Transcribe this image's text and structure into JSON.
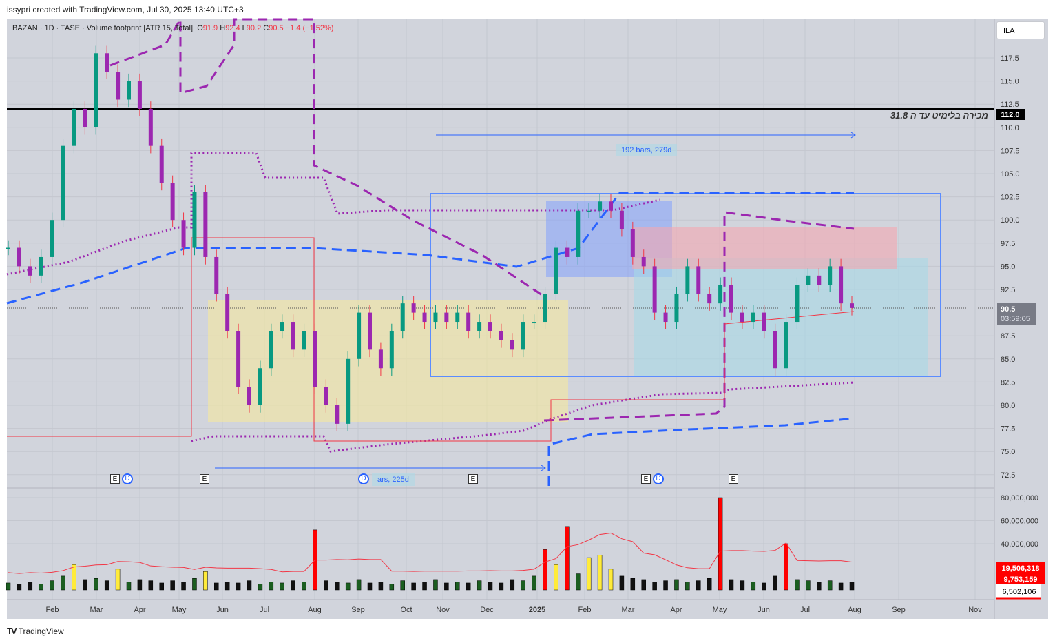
{
  "credit": "issypri created with TradingView.com, Jul 30, 2025 13:40 UTC+3",
  "legend": {
    "symbol": "BAZAN · 1D · TASE · Volume footprint [ATR 15, Total]",
    "o_label": "O",
    "o": "91.9",
    "h_label": "H",
    "h": "92.4",
    "l_label": "L",
    "l": "90.2",
    "c_label": "C",
    "c": "90.5",
    "change": "−1.4 (−1.52%)"
  },
  "currency": "ILA",
  "annotation_text": "מכירה בלימיט עד ה 31.8",
  "line_label": "112.0",
  "last_price": "90.5",
  "countdown": "03:59:05",
  "range_label_1": "192 bars, 279d",
  "range_label_2": "ars, 225d",
  "event_markers": {
    "e": "E",
    "d": "D"
  },
  "volume_labels": [
    "19,506,318",
    "9,753,159",
    "6,502,106"
  ],
  "footer": "TradingView",
  "colors": {
    "up": "#089981",
    "down": "#f23645",
    "candle_body": "#9c27b0",
    "accent": "#2962ff"
  },
  "chart_data": {
    "type": "candlestick",
    "price_ticks": [
      "117.5",
      "115.0",
      "112.5",
      "110.0",
      "107.5",
      "105.0",
      "102.5",
      "100.0",
      "97.5",
      "95.0",
      "92.5",
      "87.5",
      "85.0",
      "82.5",
      "80.0",
      "77.5",
      "75.0",
      "72.5"
    ],
    "volume_ticks": [
      "80,000,000",
      "60,000,000",
      "40,000,000"
    ],
    "time_ticks": [
      "Feb",
      "Mar",
      "Apr",
      "May",
      "Jun",
      "Jul",
      "Aug",
      "Sep",
      "Oct",
      "Nov",
      "Dec",
      "2025",
      "Feb",
      "Mar",
      "Apr",
      "May",
      "Jun",
      "Jul",
      "Aug",
      "Sep",
      "Nov"
    ],
    "ylim": [
      72.5,
      117.5
    ],
    "weekly_closes": [
      97,
      95,
      94,
      96,
      100,
      108,
      112,
      110,
      118,
      116,
      113,
      115,
      112,
      108,
      104,
      100,
      97,
      103,
      96,
      92,
      88,
      82,
      80,
      84,
      88,
      89,
      86,
      88,
      82,
      80,
      78,
      85,
      90,
      86,
      84,
      88,
      91,
      90,
      89,
      90,
      89,
      90,
      88,
      89,
      88,
      87,
      86,
      89,
      89,
      92,
      97,
      96,
      101,
      101,
      102,
      101,
      99,
      96,
      95,
      90,
      89,
      92,
      95,
      92,
      91,
      93,
      90,
      89,
      90,
      88,
      84,
      89,
      93,
      94,
      93,
      95,
      91,
      90.5
    ],
    "volume_millions": [
      6,
      5,
      7,
      5,
      8,
      12,
      22,
      9,
      10,
      8,
      18,
      7,
      9,
      8,
      6,
      8,
      7,
      10,
      16,
      6,
      7,
      6,
      8,
      5,
      7,
      6,
      8,
      7,
      52,
      8,
      7,
      6,
      9,
      6,
      7,
      5,
      8,
      6,
      7,
      9,
      6,
      7,
      6,
      8,
      7,
      6,
      9,
      8,
      12,
      35,
      22,
      55,
      14,
      28,
      30,
      18,
      12,
      10,
      9,
      7,
      8,
      9,
      7,
      8,
      10,
      80,
      9,
      8,
      7,
      6,
      12,
      40,
      9,
      8,
      7,
      8,
      6,
      7
    ],
    "horizontal_line": 112.0
  }
}
